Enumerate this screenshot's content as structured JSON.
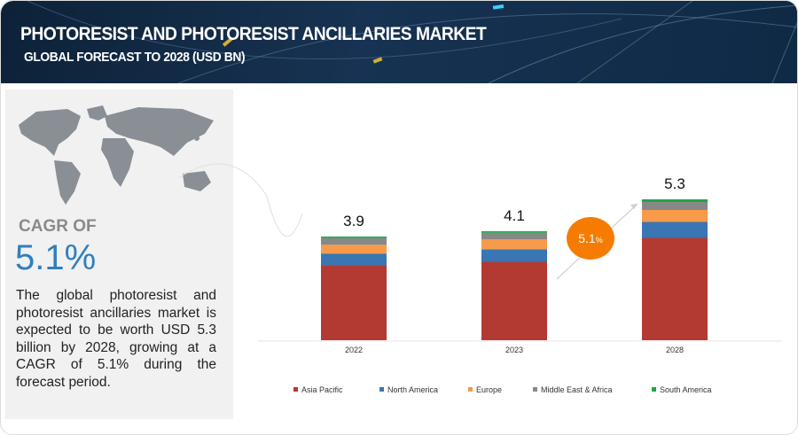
{
  "header": {
    "title": "PHOTORESIST AND PHOTORESIST ANCILLARIES MARKET",
    "subtitle": "GLOBAL FORECAST TO 2028 (USD BN)"
  },
  "left_panel": {
    "cagr_label": "CAGR OF",
    "cagr_value": "5.1%",
    "description": "The global photoresist and photoresist ancillaries market is expected to be worth USD 5.3 billion by 2028, growing at a CAGR of 5.1% during the forecast period.",
    "map_icon": "world-map-icon"
  },
  "chart_data": {
    "type": "bar",
    "stacked": true,
    "categories": [
      "2022",
      "2023",
      "2028"
    ],
    "totals": [
      "3.9",
      "4.1",
      "5.3"
    ],
    "series": [
      {
        "name": "Asia Pacific",
        "color": "#b33a32",
        "values": [
          2.83,
          2.95,
          3.85
        ]
      },
      {
        "name": "North America",
        "color": "#3a75b4",
        "values": [
          0.43,
          0.47,
          0.6
        ]
      },
      {
        "name": "Europe",
        "color": "#f79a4a",
        "values": [
          0.33,
          0.37,
          0.45
        ]
      },
      {
        "name": "Middle East & Africa",
        "color": "#888888",
        "values": [
          0.25,
          0.25,
          0.3
        ]
      },
      {
        "name": "South America",
        "color": "#1fa64a",
        "values": [
          0.06,
          0.06,
          0.1
        ]
      }
    ],
    "cagr_badge": {
      "value": "5.1",
      "unit": "%",
      "color": "#f57c00"
    },
    "legend_position": "bottom",
    "grid": false
  }
}
